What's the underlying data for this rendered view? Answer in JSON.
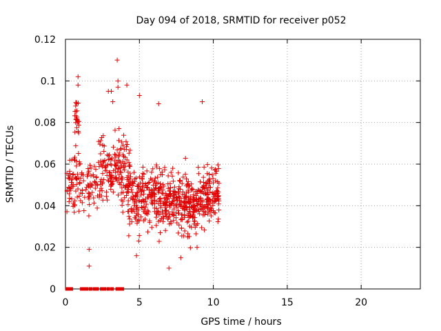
{
  "chart_data": {
    "type": "scatter",
    "title": "Day 094 of 2018, SRMTID for receiver p052",
    "xlabel": "GPS time / hours",
    "ylabel": "SRMTID / TECUs",
    "xlim": [
      0,
      24
    ],
    "ylim": [
      0,
      0.12
    ],
    "xticks": [
      0,
      5,
      10,
      15,
      20
    ],
    "xtick_labels": [
      "0",
      "5",
      "10",
      "15",
      "20"
    ],
    "yticks": [
      0,
      0.02,
      0.04,
      0.06,
      0.08,
      0.1,
      0.12
    ],
    "ytick_labels": [
      "0",
      "0.02",
      "0.04",
      "0.06",
      "0.08",
      "0.1",
      "0.12"
    ],
    "grid": true,
    "marker": "plus",
    "series_color": "#e00000",
    "point_count_approx": 1100,
    "time_range_hours": [
      0.1,
      10.4
    ],
    "notable_points": [
      {
        "x": 3.5,
        "y": 0.11
      },
      {
        "x": 0.85,
        "y": 0.102
      },
      {
        "x": 0.85,
        "y": 0.098
      },
      {
        "x": 3.55,
        "y": 0.1
      },
      {
        "x": 3.55,
        "y": 0.097
      },
      {
        "x": 4.15,
        "y": 0.098
      },
      {
        "x": 2.9,
        "y": 0.095
      },
      {
        "x": 3.1,
        "y": 0.095
      },
      {
        "x": 5.0,
        "y": 0.093
      },
      {
        "x": 9.25,
        "y": 0.09
      },
      {
        "x": 6.3,
        "y": 0.089
      },
      {
        "x": 3.2,
        "y": 0.09
      },
      {
        "x": 1.6,
        "y": 0.019
      },
      {
        "x": 1.6,
        "y": 0.011
      },
      {
        "x": 7.0,
        "y": 0.01
      },
      {
        "x": 4.8,
        "y": 0.016
      },
      {
        "x": 7.8,
        "y": 0.015
      },
      {
        "x": 8.9,
        "y": 0.02
      }
    ],
    "density_profile": [
      {
        "t0": 0.1,
        "t1": 1.0,
        "center": 0.05,
        "spread": 0.012,
        "count": 60
      },
      {
        "t0": 0.6,
        "t1": 0.95,
        "center": 0.082,
        "spread": 0.01,
        "count": 25
      },
      {
        "t0": 1.0,
        "t1": 2.2,
        "center": 0.05,
        "spread": 0.009,
        "count": 55
      },
      {
        "t0": 2.2,
        "t1": 3.3,
        "center": 0.058,
        "spread": 0.012,
        "count": 75
      },
      {
        "t0": 3.3,
        "t1": 4.4,
        "center": 0.058,
        "spread": 0.014,
        "count": 95
      },
      {
        "t0": 4.2,
        "t1": 5.4,
        "center": 0.045,
        "spread": 0.012,
        "count": 110
      },
      {
        "t0": 5.4,
        "t1": 6.6,
        "center": 0.044,
        "spread": 0.012,
        "count": 110
      },
      {
        "t0": 6.6,
        "t1": 7.8,
        "center": 0.042,
        "spread": 0.011,
        "count": 120
      },
      {
        "t0": 7.8,
        "t1": 8.9,
        "center": 0.04,
        "spread": 0.011,
        "count": 130
      },
      {
        "t0": 8.9,
        "t1": 10.4,
        "center": 0.046,
        "spread": 0.011,
        "count": 150
      }
    ],
    "zero_markers_x": [
      0.1,
      0.25,
      0.4,
      1.1,
      1.25,
      1.45,
      1.7,
      1.95,
      2.15,
      2.45,
      2.65,
      2.9,
      3.15,
      3.5,
      3.7,
      3.85
    ]
  }
}
